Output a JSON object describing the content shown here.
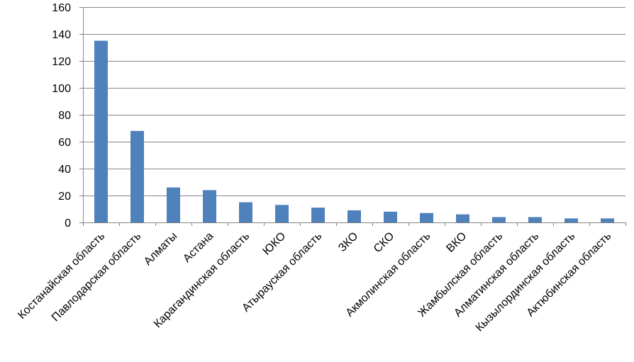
{
  "chart_data": {
    "type": "bar",
    "title": "",
    "xlabel": "",
    "ylabel": "",
    "ylim": [
      0,
      160
    ],
    "yticks": [
      0,
      20,
      40,
      60,
      80,
      100,
      120,
      140,
      160
    ],
    "grid": true,
    "legend": "none",
    "bar_color": "#4F81BD",
    "categories": [
      "Костанайская область",
      "Павлодарская область",
      "Алматы",
      "Астана",
      "Карагандинская область",
      "ЮКО",
      "Атырауская область",
      "ЗКО",
      "СКО",
      "Акмолинская область",
      "ВКО",
      "Жамбылская область",
      "Алматинская область",
      "Кызылординская область",
      "Актюбинская область"
    ],
    "values": [
      135,
      68,
      26,
      24,
      15,
      13,
      11,
      9,
      8,
      7,
      6,
      4,
      4,
      3,
      3
    ]
  }
}
